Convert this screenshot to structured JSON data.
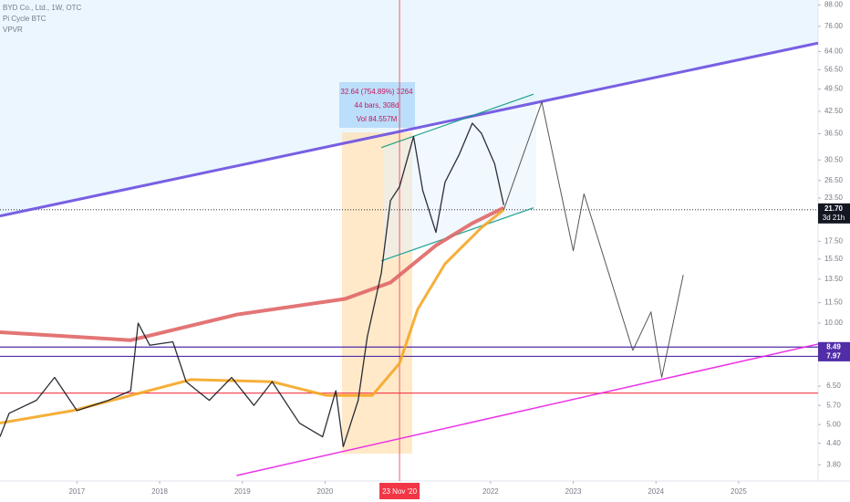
{
  "chart_data": {
    "type": "line",
    "title": "BYD Co., Ltd., 1W, OTC",
    "indicators": [
      "Pi Cycle BTC",
      "VPVR"
    ],
    "log_scale": true,
    "xlim": [
      2016.07,
      2025.96
    ],
    "ylim": [
      3.4,
      91
    ],
    "xticks": [
      2017,
      2018,
      2019,
      2020,
      2022,
      2023,
      2024,
      2025
    ],
    "yticks": [
      {
        "value": 88,
        "label": "88.00"
      },
      {
        "value": 76,
        "label": "76.00"
      },
      {
        "value": 64,
        "label": "64.00"
      },
      {
        "value": 56.5,
        "label": "56.50"
      },
      {
        "value": 49.5,
        "label": "49.50"
      },
      {
        "value": 42.5,
        "label": "42.50"
      },
      {
        "value": 36.5,
        "label": "36.50"
      },
      {
        "value": 30.5,
        "label": "30.50"
      },
      {
        "value": 26.5,
        "label": "26.50"
      },
      {
        "value": 23.5,
        "label": "23.50"
      },
      {
        "value": 17.5,
        "label": "17.50"
      },
      {
        "value": 15.5,
        "label": "15.50"
      },
      {
        "value": 13.5,
        "label": "13.50"
      },
      {
        "value": 11.5,
        "label": "11.50"
      },
      {
        "value": 10,
        "label": "10.00"
      },
      {
        "value": 6.5,
        "label": "6.50"
      },
      {
        "value": 5.7,
        "label": "5.70"
      },
      {
        "value": 5,
        "label": "5.00"
      },
      {
        "value": 4.4,
        "label": "4.40"
      },
      {
        "value": 3.8,
        "label": "3.80"
      }
    ],
    "series": [
      {
        "color": "#6a4fe0",
        "width": 3,
        "x": [
          2016.07,
          2025.96
        ],
        "values": [
          20.8,
          67.8
        ]
      },
      {
        "color": "#e91ee6",
        "width": 1.5,
        "x": [
          2018.93,
          2025.96
        ],
        "values": [
          3.53,
          8.67
        ]
      },
      {
        "color": "#089981",
        "width": 1.2,
        "x": [
          2020.68,
          2022.52
        ],
        "values": [
          33.2,
          47.8
        ]
      },
      {
        "color": "#089981",
        "width": 1.2,
        "x": [
          2020.68,
          2022.52
        ],
        "values": [
          15.3,
          22.0
        ]
      },
      {
        "color": "#e06666",
        "width": 4,
        "x": [
          2016.07,
          2017.65,
          2018.93,
          2020.24,
          2020.79,
          2021.34,
          2021.78,
          2022.16
        ],
        "values": [
          9.4,
          8.9,
          10.6,
          11.8,
          13.2,
          17.0,
          19.8,
          22.0
        ]
      },
      {
        "color": "#f5a623",
        "width": 3,
        "x": [
          2016.07,
          2016.95,
          2018.38,
          2019.36,
          2020.02,
          2020.57,
          2020.9,
          2021.12,
          2021.45,
          2021.89,
          2022.16
        ],
        "values": [
          5.05,
          5.5,
          6.8,
          6.7,
          6.1,
          6.1,
          7.6,
          11.0,
          15.0,
          19.2,
          21.7
        ]
      },
      {
        "color": "#131722",
        "width": 1.3,
        "x": [
          2016.07,
          2016.18,
          2016.51,
          2016.73,
          2017.0,
          2017.38,
          2017.65,
          2017.74,
          2017.88,
          2018.16,
          2018.32,
          2018.6,
          2018.87,
          2019.14,
          2019.36,
          2019.69,
          2019.97,
          2020.13,
          2020.22,
          2020.4,
          2020.51,
          2020.68,
          2020.79,
          2020.9,
          2021.07,
          2021.18,
          2021.34,
          2021.45,
          2021.62,
          2021.78,
          2021.89,
          2022.05,
          2022.16
        ],
        "values": [
          4.6,
          5.4,
          5.9,
          6.9,
          5.5,
          5.9,
          6.3,
          10.0,
          8.6,
          8.8,
          6.7,
          5.9,
          6.9,
          5.7,
          6.7,
          5.05,
          4.6,
          6.3,
          4.3,
          5.9,
          9.1,
          14.1,
          23.1,
          25.4,
          35.8,
          24.8,
          18.6,
          26.2,
          31.6,
          39.2,
          36.6,
          29.7,
          22.4
        ]
      },
      {
        "color": "#444444",
        "width": 1,
        "x": [
          2022.16,
          2022.62,
          2023.0,
          2023.13,
          2023.72,
          2023.94,
          2024.07,
          2024.33
        ],
        "values": [
          21.7,
          45.3,
          16.4,
          24.2,
          8.3,
          10.8,
          6.9,
          13.9
        ]
      }
    ],
    "levels": [
      {
        "value": 8.49,
        "label": "8.49",
        "color": "#512da8"
      },
      {
        "value": 7.97,
        "label": "7.97",
        "color": "#512da8"
      },
      {
        "value": 6.2,
        "color": "#f23645"
      }
    ],
    "last_price": {
      "value": 21.7,
      "label": "21.70",
      "countdown": "3d 21h"
    },
    "marker_date": {
      "value": 2020.9,
      "label": "23 Nov '20"
    },
    "measure": [
      "32.64 (754.89%) 3264",
      "44 bars, 308d",
      "Vol 84.557M"
    ]
  }
}
